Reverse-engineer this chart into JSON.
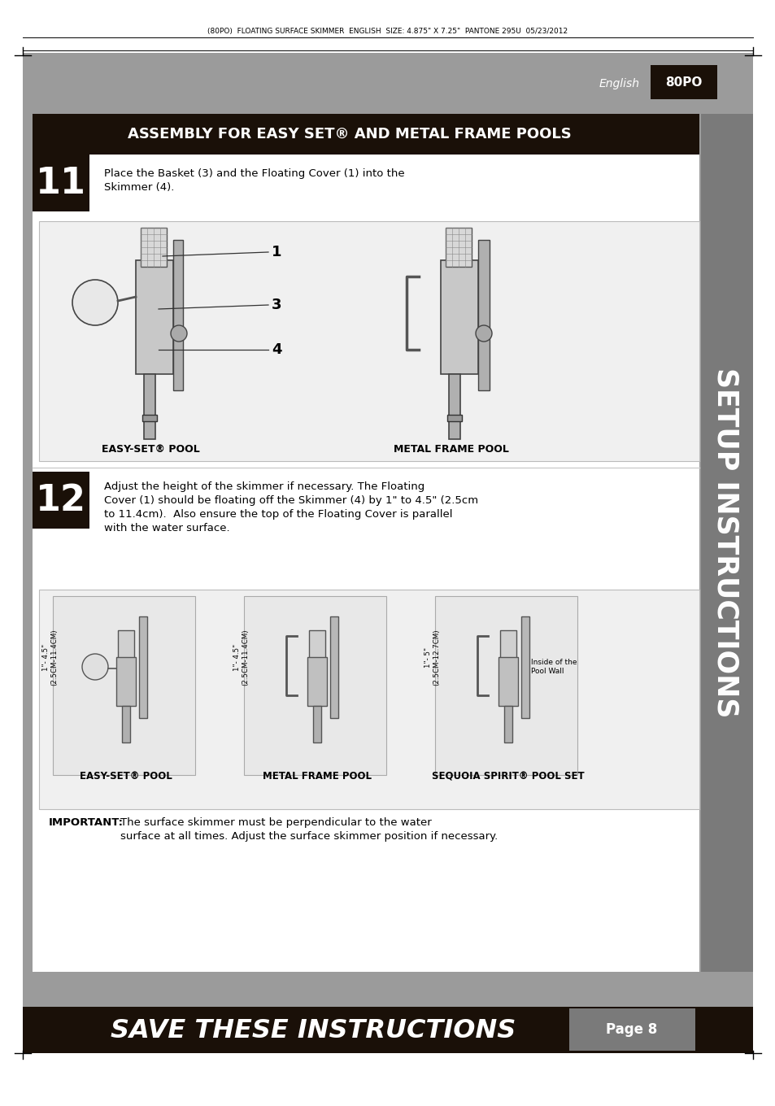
{
  "page_bg": "#ffffff",
  "outer_bg": "#9b9b9b",
  "dark_strip_color": "#1a1008",
  "header_text": "(80PO)  FLOATING SURFACE SKIMMER  ENGLISH  SIZE: 4.875\" X 7.25\"  PANTONE 295U  05/23/2012",
  "english_label": "English",
  "code_label": "80PO",
  "section_header": "ASSEMBLY FOR EASY SET® AND METAL FRAME POOLS",
  "step11_num": "11",
  "step11_text": "Place the Basket (3) and the Floating Cover (1) into the\nSkimmer (4).",
  "easy_set_label": "EASY-SET® POOL",
  "metal_frame_label": "METAL FRAME POOL",
  "step12_num": "12",
  "step12_text": "Adjust the height of the skimmer if necessary. The Floating\nCover (1) should be floating off the Skimmer (4) by 1\" to 4.5\" (2.5cm\nto 11.4cm).  Also ensure the top of the Floating Cover is parallel\nwith the water surface.",
  "easy_set_label2": "EASY-SET® POOL",
  "metal_frame_label2": "METAL FRAME POOL",
  "sequoia_label": "SEQUOIA SPIRIT® POOL SET",
  "important_text": "The surface skimmer must be perpendicular to the water\nsurface at all times. Adjust the surface skimmer position if necessary.",
  "important_bold": "IMPORTANT:",
  "save_text": "SAVE THESE INSTRUCTIONS",
  "page_label": "Page 8",
  "sidebar_text": "SETUP INSTRUCTIONS",
  "dim_label1": "1\"- 4.5\"\n(2.5CM-11.4CM)",
  "dim_label2": "1\"- 4.5\"\n(2.5CM-11.4CM)",
  "dim_label3": "1\"- 5\"\n(2.5CM-12.7CM)",
  "inside_pool_wall": "Inside of the\nPool Wall"
}
